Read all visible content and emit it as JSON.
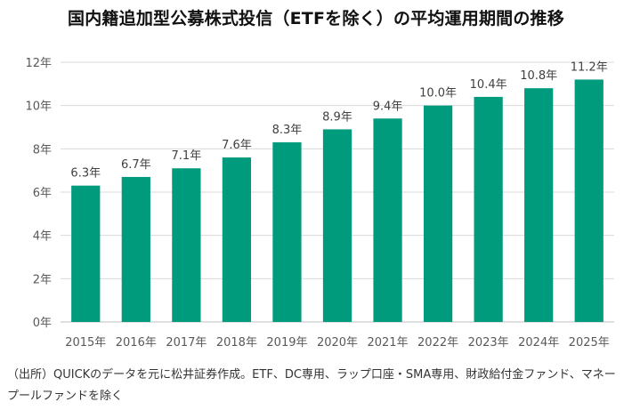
{
  "chart_data": {
    "type": "bar",
    "title": "国内籍追加型公募株式投信（ETFを除く）の平均運用期間の推移",
    "categories": [
      "2015年",
      "2016年",
      "2017年",
      "2018年",
      "2019年",
      "2020年",
      "2021年",
      "2022年",
      "2023年",
      "2024年",
      "2025年"
    ],
    "values": [
      6.3,
      6.7,
      7.1,
      7.6,
      8.3,
      8.9,
      9.4,
      10.0,
      10.4,
      10.8,
      11.2
    ],
    "data_labels": [
      "6.3年",
      "6.7年",
      "7.1年",
      "7.6年",
      "8.3年",
      "8.9年",
      "9.4年",
      "10.0年",
      "10.4年",
      "10.8年",
      "11.2年"
    ],
    "y_ticks": [
      0,
      2,
      4,
      6,
      8,
      10,
      12
    ],
    "y_tick_labels": [
      "0年",
      "2年",
      "4年",
      "6年",
      "8年",
      "10年",
      "12年"
    ],
    "ylim": [
      0,
      12
    ],
    "grid": true,
    "bar_color": "#009B7D",
    "note": "（出所）QUICKのデータを元に松井証券作成。ETF、DC専用、ラップ口座・SMA専用、財政給付金ファンド、マネープールファンドを除く"
  }
}
